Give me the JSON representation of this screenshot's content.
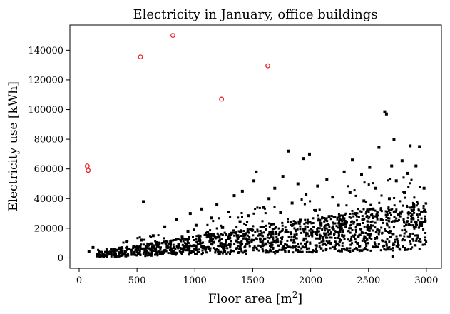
{
  "chart_data": {
    "type": "scatter",
    "title": "Electricity in January, office buildings",
    "xlabel_base": "Floor area [m",
    "xlabel_sup": "2",
    "xlabel_end": "]",
    "ylabel": "Electricity use [kWh]",
    "xlim": [
      -80,
      3130
    ],
    "ylim": [
      -7000,
      157000
    ],
    "x_ticks": [
      0,
      500,
      1000,
      1500,
      2000,
      2500,
      3000
    ],
    "x_tick_labels": [
      "0",
      "500",
      "1000",
      "1500",
      "2000",
      "2500",
      "3000"
    ],
    "y_ticks": [
      0,
      20000,
      40000,
      60000,
      80000,
      100000,
      120000,
      140000
    ],
    "y_tick_labels": [
      "0",
      "20000",
      "40000",
      "60000",
      "80000",
      "100000",
      "120000",
      "140000"
    ],
    "grid": false,
    "series": [
      {
        "marker": "open-circle",
        "color": "#e8262b",
        "points": [
          {
            "x": 70,
            "y": 62000
          },
          {
            "x": 78,
            "y": 59000
          },
          {
            "x": 530,
            "y": 135500
          },
          {
            "x": 810,
            "y": 150000
          },
          {
            "x": 1230,
            "y": 107000
          },
          {
            "x": 1630,
            "y": 129500
          }
        ]
      },
      {
        "marker": "filled-square",
        "color": "#000000",
        "points": [
          {
            "x": 85,
            "y": 4500
          },
          {
            "x": 120,
            "y": 7000
          },
          {
            "x": 180,
            "y": 1500
          },
          {
            "x": 210,
            "y": 2000
          },
          {
            "x": 240,
            "y": 1200
          },
          {
            "x": 270,
            "y": 3000
          },
          {
            "x": 300,
            "y": 2200
          },
          {
            "x": 320,
            "y": 1000
          },
          {
            "x": 350,
            "y": 3500
          },
          {
            "x": 380,
            "y": 2600
          },
          {
            "x": 400,
            "y": 4200
          },
          {
            "x": 420,
            "y": 1800
          },
          {
            "x": 450,
            "y": 5200
          },
          {
            "x": 470,
            "y": 2400
          },
          {
            "x": 500,
            "y": 6000
          },
          {
            "x": 520,
            "y": 3300
          },
          {
            "x": 540,
            "y": 12000
          },
          {
            "x": 555,
            "y": 38000
          },
          {
            "x": 570,
            "y": 4500
          },
          {
            "x": 590,
            "y": 8000
          },
          {
            "x": 610,
            "y": 2100
          },
          {
            "x": 640,
            "y": 15000
          },
          {
            "x": 660,
            "y": 6200
          },
          {
            "x": 690,
            "y": 9500
          },
          {
            "x": 710,
            "y": 3000
          },
          {
            "x": 740,
            "y": 21000
          },
          {
            "x": 760,
            "y": 7400
          },
          {
            "x": 790,
            "y": 11000
          },
          {
            "x": 810,
            "y": 4200
          },
          {
            "x": 840,
            "y": 26000
          },
          {
            "x": 860,
            "y": 9000
          },
          {
            "x": 890,
            "y": 14500
          },
          {
            "x": 910,
            "y": 5600
          },
          {
            "x": 940,
            "y": 18000
          },
          {
            "x": 960,
            "y": 30000
          },
          {
            "x": 990,
            "y": 8300
          },
          {
            "x": 1010,
            "y": 22000
          },
          {
            "x": 1040,
            "y": 12500
          },
          {
            "x": 1060,
            "y": 33000
          },
          {
            "x": 1090,
            "y": 6800
          },
          {
            "x": 1110,
            "y": 17500
          },
          {
            "x": 1140,
            "y": 27000
          },
          {
            "x": 1160,
            "y": 10500
          },
          {
            "x": 1190,
            "y": 36000
          },
          {
            "x": 1210,
            "y": 14000
          },
          {
            "x": 1240,
            "y": 20500
          },
          {
            "x": 1260,
            "y": 8800
          },
          {
            "x": 1290,
            "y": 31000
          },
          {
            "x": 1310,
            "y": 16000
          },
          {
            "x": 1340,
            "y": 42000
          },
          {
            "x": 1360,
            "y": 11500
          },
          {
            "x": 1390,
            "y": 24500
          },
          {
            "x": 1410,
            "y": 45000
          },
          {
            "x": 1440,
            "y": 13000
          },
          {
            "x": 1460,
            "y": 28500
          },
          {
            "x": 1490,
            "y": 19000
          },
          {
            "x": 1510,
            "y": 52000
          },
          {
            "x": 1530,
            "y": 58000
          },
          {
            "x": 1560,
            "y": 15500
          },
          {
            "x": 1590,
            "y": 34000
          },
          {
            "x": 1610,
            "y": 9500
          },
          {
            "x": 1640,
            "y": 40000
          },
          {
            "x": 1660,
            "y": 22500
          },
          {
            "x": 1690,
            "y": 47000
          },
          {
            "x": 1710,
            "y": 12000
          },
          {
            "x": 1740,
            "y": 30500
          },
          {
            "x": 1760,
            "y": 55000
          },
          {
            "x": 1790,
            "y": 18500
          },
          {
            "x": 1810,
            "y": 72000
          },
          {
            "x": 1840,
            "y": 37000
          },
          {
            "x": 1860,
            "y": 14000
          },
          {
            "x": 1890,
            "y": 50000
          },
          {
            "x": 1910,
            "y": 25500
          },
          {
            "x": 1940,
            "y": 67000
          },
          {
            "x": 1960,
            "y": 43000
          },
          {
            "x": 1990,
            "y": 70000
          },
          {
            "x": 2010,
            "y": 16000
          },
          {
            "x": 2040,
            "y": 32000
          },
          {
            "x": 2060,
            "y": 48500
          },
          {
            "x": 2090,
            "y": 22000
          },
          {
            "x": 2110,
            "y": 11500
          },
          {
            "x": 2140,
            "y": 53000
          },
          {
            "x": 2160,
            "y": 28000
          },
          {
            "x": 2190,
            "y": 41000
          },
          {
            "x": 2210,
            "y": 6000
          },
          {
            "x": 2240,
            "y": 35500
          },
          {
            "x": 2260,
            "y": 19500
          },
          {
            "x": 2290,
            "y": 58000
          },
          {
            "x": 2310,
            "y": 24000
          },
          {
            "x": 2340,
            "y": 44000
          },
          {
            "x": 2360,
            "y": 66000
          },
          {
            "x": 2390,
            "y": 30000
          },
          {
            "x": 2410,
            "y": 14500
          },
          {
            "x": 2440,
            "y": 56000
          },
          {
            "x": 2460,
            "y": 38500
          },
          {
            "x": 2490,
            "y": 21000
          },
          {
            "x": 2510,
            "y": 61000
          },
          {
            "x": 2540,
            "y": 33000
          },
          {
            "x": 2560,
            "y": 47000
          },
          {
            "x": 2590,
            "y": 74500
          },
          {
            "x": 2610,
            "y": 26000
          },
          {
            "x": 2640,
            "y": 98500
          },
          {
            "x": 2655,
            "y": 97000
          },
          {
            "x": 2680,
            "y": 40000
          },
          {
            "x": 2700,
            "y": 62000
          },
          {
            "x": 2710,
            "y": 1000
          },
          {
            "x": 2720,
            "y": 80000
          },
          {
            "x": 2740,
            "y": 52000
          },
          {
            "x": 2760,
            "y": 29000
          },
          {
            "x": 2790,
            "y": 65500
          },
          {
            "x": 2810,
            "y": 44000
          },
          {
            "x": 2840,
            "y": 57000
          },
          {
            "x": 2860,
            "y": 75500
          },
          {
            "x": 2890,
            "y": 36000
          },
          {
            "x": 2910,
            "y": 62000
          },
          {
            "x": 2940,
            "y": 75000
          },
          {
            "x": 2960,
            "y": 31000
          },
          {
            "x": 2980,
            "y": 47000
          },
          {
            "x": 2990,
            "y": 25000
          }
        ]
      }
    ]
  }
}
